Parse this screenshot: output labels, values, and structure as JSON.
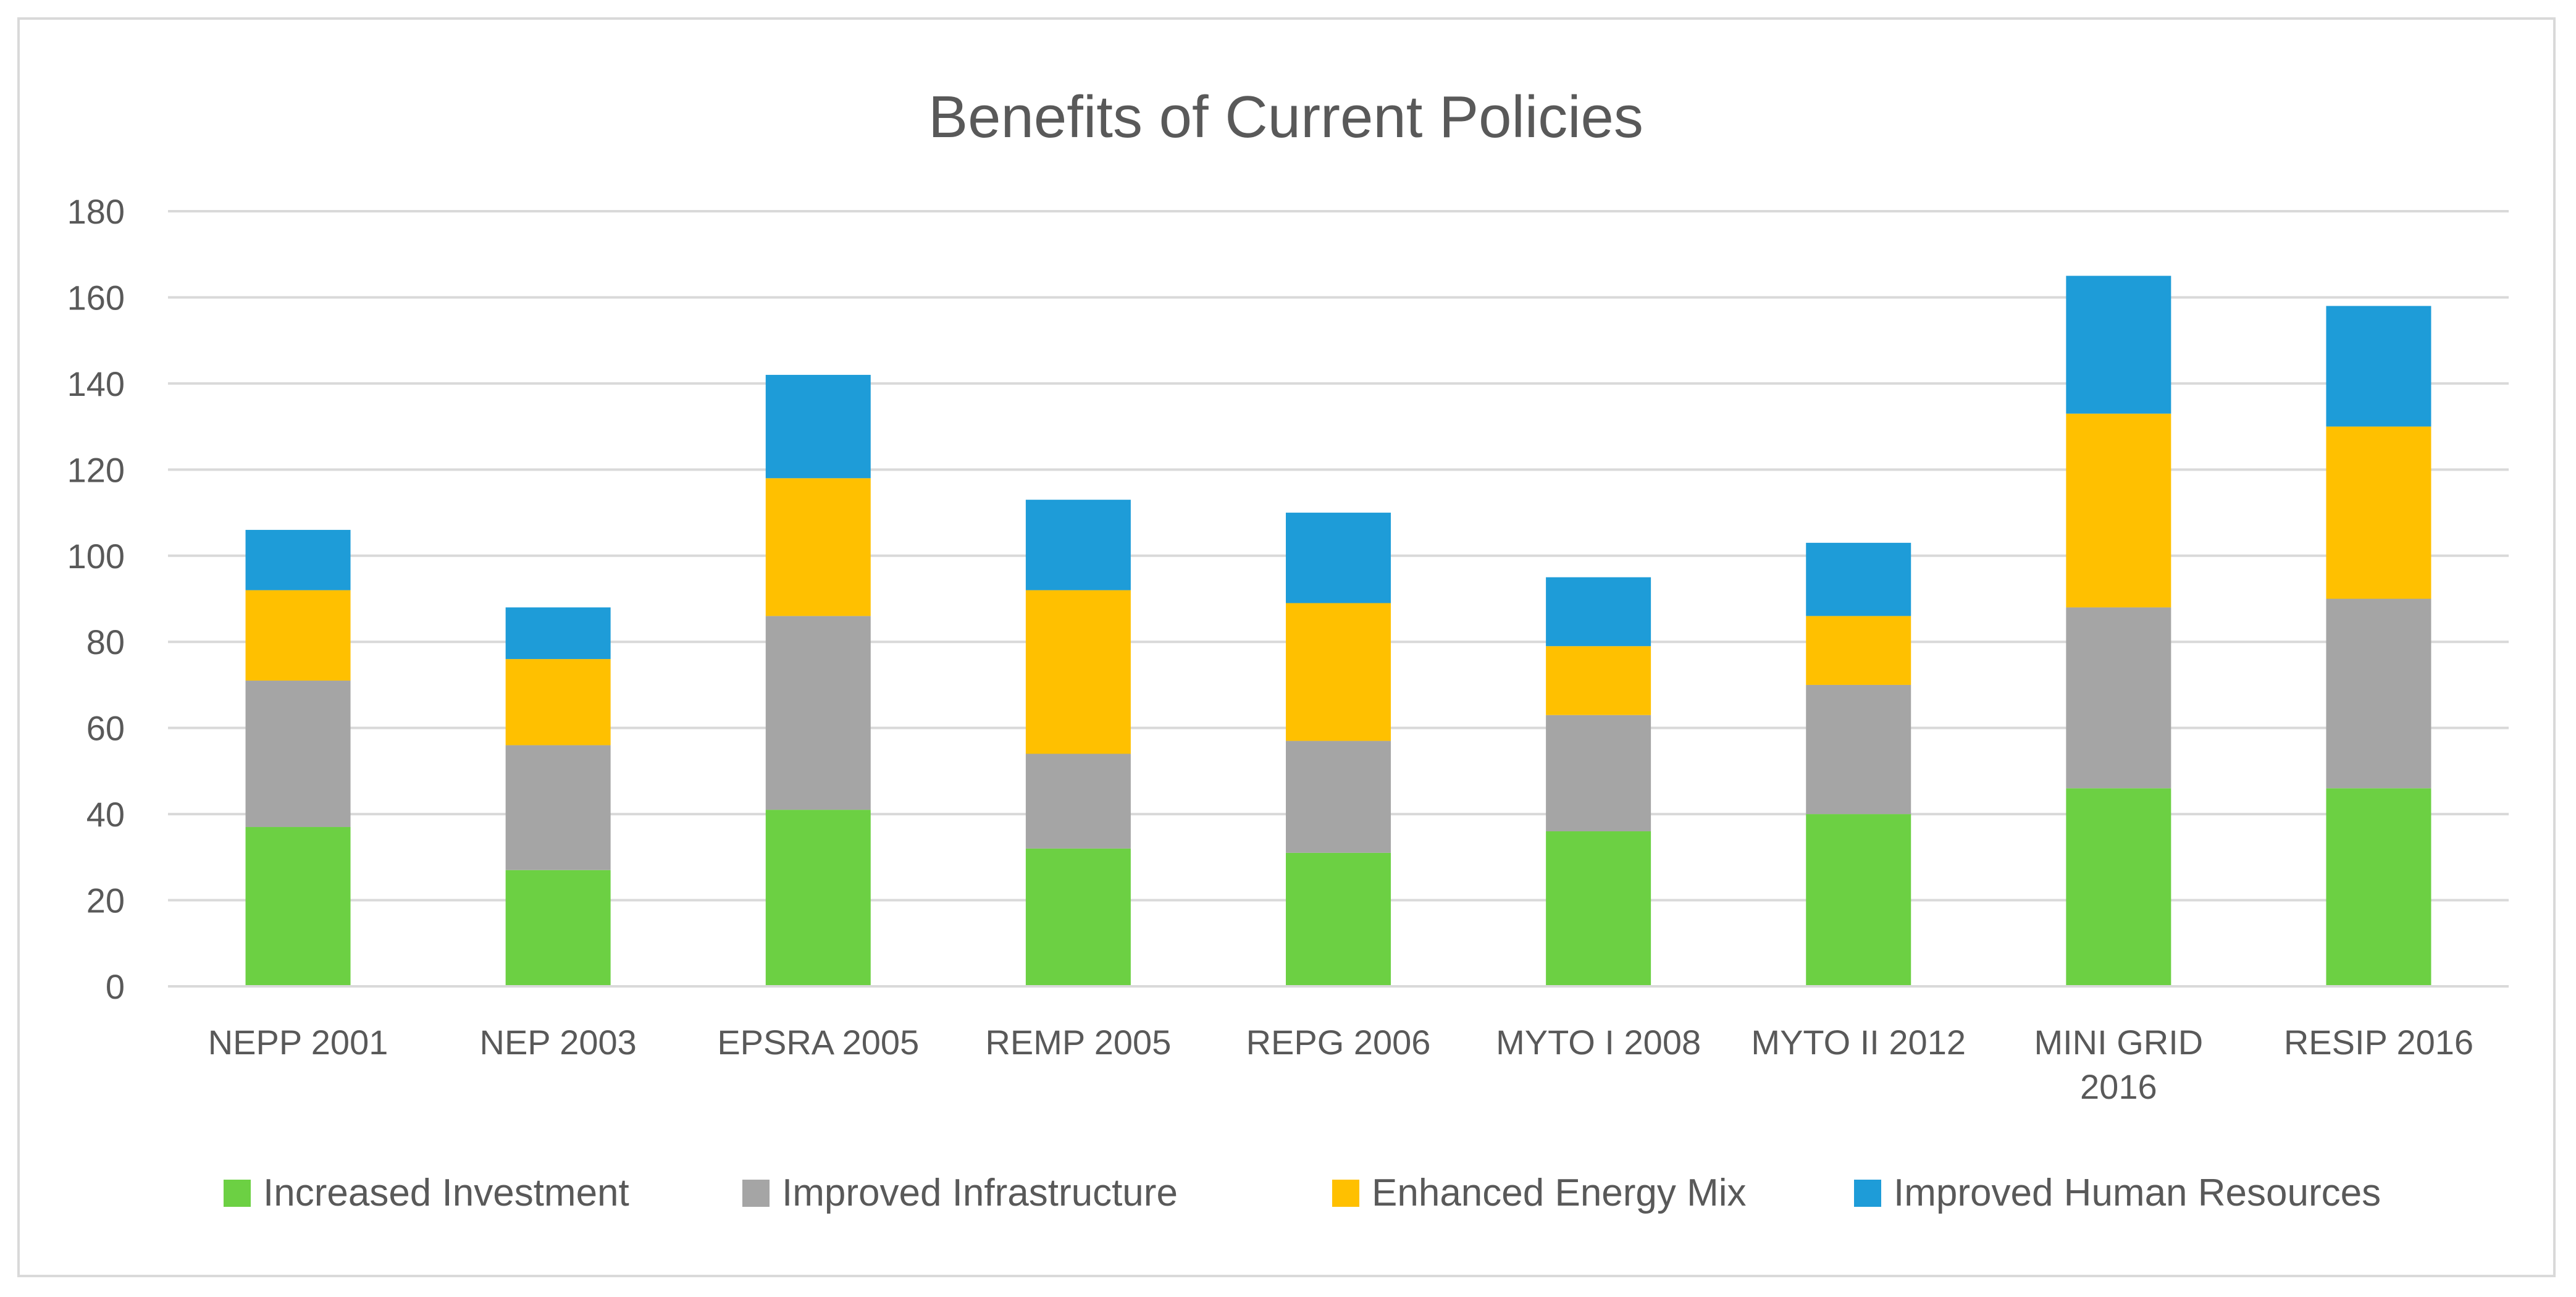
{
  "chart_data": {
    "type": "bar",
    "stacked": true,
    "title": "Benefits of Current Policies",
    "xlabel": "",
    "ylabel": "",
    "ylim": [
      0,
      180
    ],
    "yticks": [
      0,
      20,
      40,
      60,
      80,
      100,
      120,
      140,
      160,
      180
    ],
    "grid": true,
    "legend_position": "bottom",
    "categories": [
      "NEPP 2001",
      "NEP 2003",
      "EPSRA 2005",
      "REMP 2005",
      "REPG 2006",
      "MYTO I 2008",
      "MYTO II 2012",
      "MINI GRID 2016",
      "RESIP 2016"
    ],
    "category_lines": [
      [
        "NEPP 2001"
      ],
      [
        "NEP 2003"
      ],
      [
        "EPSRA 2005"
      ],
      [
        "REMP 2005"
      ],
      [
        "REPG 2006"
      ],
      [
        "MYTO I 2008"
      ],
      [
        "MYTO II 2012"
      ],
      [
        "MINI GRID",
        "2016"
      ],
      [
        "RESIP 2016"
      ]
    ],
    "series": [
      {
        "name": "Increased Investment",
        "color": "#6cd043",
        "values": [
          37,
          27,
          41,
          32,
          31,
          36,
          40,
          46,
          46
        ]
      },
      {
        "name": "Improved Infrastructure",
        "color": "#a5a5a5",
        "values": [
          34,
          29,
          45,
          22,
          26,
          27,
          30,
          42,
          44
        ]
      },
      {
        "name": "Enhanced Energy Mix",
        "color": "#ffc000",
        "values": [
          21,
          20,
          32,
          38,
          32,
          16,
          16,
          45,
          40
        ]
      },
      {
        "name": "Improved Human Resources",
        "color": "#1e9cd8",
        "values": [
          14,
          12,
          24,
          21,
          21,
          16,
          17,
          32,
          28
        ]
      }
    ]
  }
}
